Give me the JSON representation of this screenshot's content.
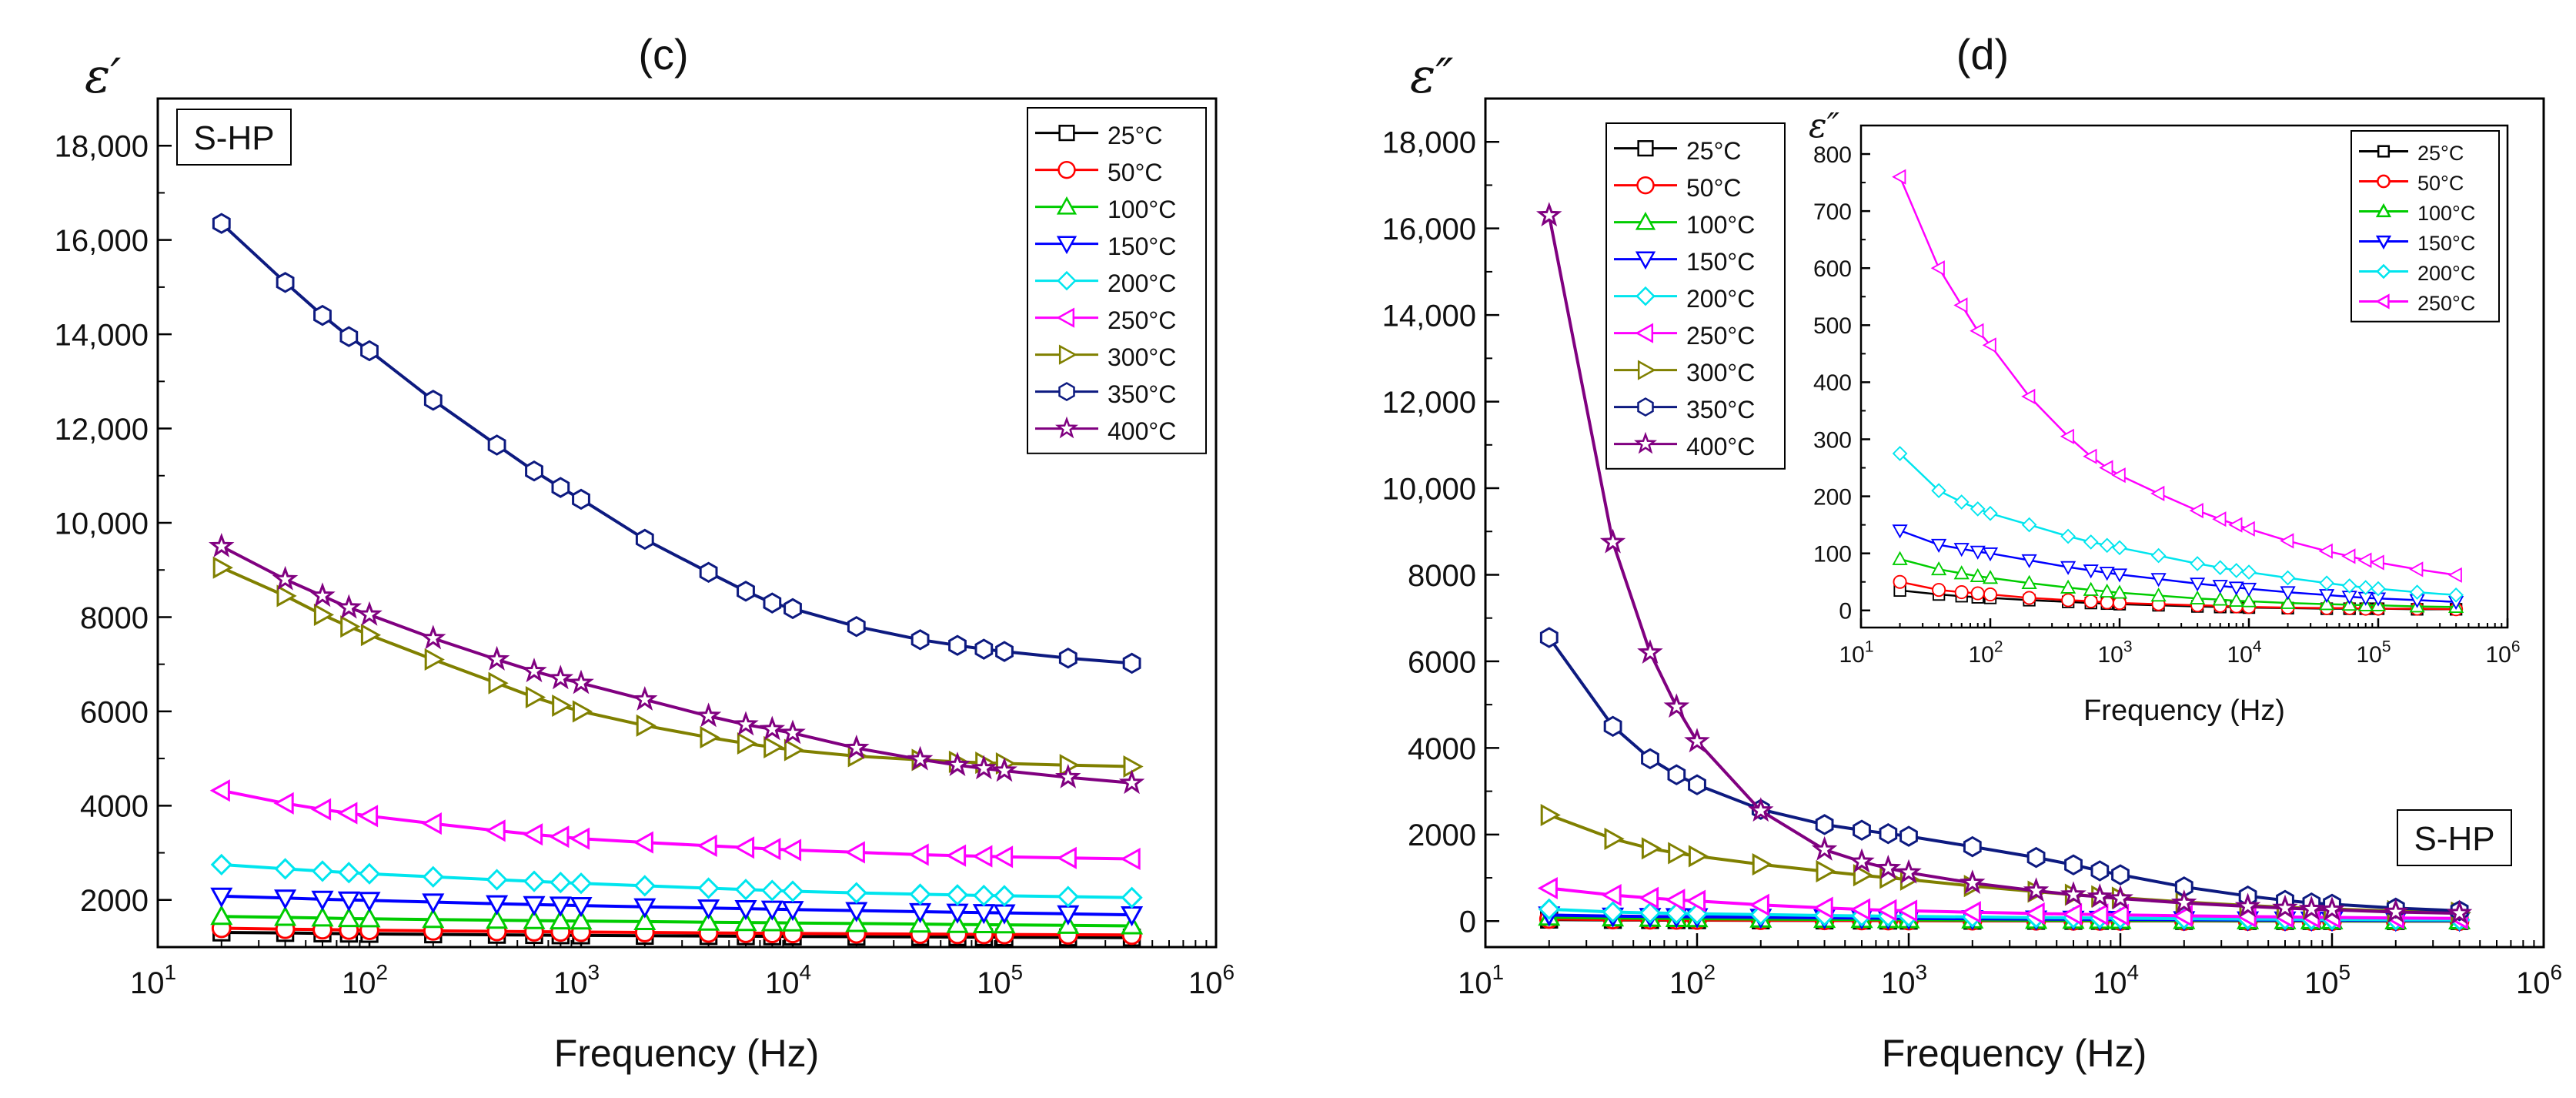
{
  "figure": {
    "panel_c_label": "(c)",
    "panel_d_label": "(d)"
  },
  "chart_data": [
    {
      "id": "c",
      "type": "line",
      "title": "(c)",
      "xlabel": "Frequency (Hz)",
      "ylabel": "ε′",
      "xscale": "log",
      "xlim": [
        10,
        1000000
      ],
      "ylim": [
        1000,
        19000
      ],
      "xticks": [
        {
          "value": 10,
          "mant": "10",
          "exp": "1"
        },
        {
          "value": 100,
          "mant": "10",
          "exp": "2"
        },
        {
          "value": 1000,
          "mant": "10",
          "exp": "3"
        },
        {
          "value": 10000,
          "mant": "10",
          "exp": "4"
        },
        {
          "value": 100000,
          "mant": "10",
          "exp": "5"
        },
        {
          "value": 1000000,
          "mant": "10",
          "exp": "6"
        }
      ],
      "yticks": [
        {
          "value": 2000,
          "label": "2000"
        },
        {
          "value": 4000,
          "label": "4000"
        },
        {
          "value": 6000,
          "label": "6000"
        },
        {
          "value": 8000,
          "label": "8000"
        },
        {
          "value": 10000,
          "label": "10,000"
        },
        {
          "value": 12000,
          "label": "12,000"
        },
        {
          "value": 14000,
          "label": "14,000"
        },
        {
          "value": 16000,
          "label": "16,000"
        },
        {
          "value": 18000,
          "label": "18,000"
        }
      ],
      "annotation": "S-HP",
      "annotation_position": "top-left",
      "legend_position": "top-right",
      "x": [
        20,
        40,
        60,
        80,
        100,
        200,
        400,
        600,
        800,
        1000,
        2000,
        4000,
        6000,
        8000,
        10000,
        20000,
        40000,
        60000,
        80000,
        100000,
        200000,
        400000
      ],
      "series": [
        {
          "name": "25°C",
          "color": "#000000",
          "marker": "square",
          "values": [
            1310,
            1300,
            1290,
            1285,
            1280,
            1270,
            1260,
            1255,
            1250,
            1248,
            1240,
            1235,
            1230,
            1228,
            1225,
            1220,
            1215,
            1212,
            1210,
            1208,
            1205,
            1200
          ]
        },
        {
          "name": "50°C",
          "color": "#ff0000",
          "marker": "circle",
          "values": [
            1400,
            1380,
            1370,
            1362,
            1358,
            1345,
            1333,
            1327,
            1322,
            1319,
            1310,
            1300,
            1295,
            1292,
            1290,
            1283,
            1276,
            1272,
            1270,
            1268,
            1262,
            1256
          ]
        },
        {
          "name": "100°C",
          "color": "#00cc00",
          "marker": "triangle-up",
          "values": [
            1650,
            1630,
            1615,
            1605,
            1600,
            1585,
            1570,
            1562,
            1556,
            1552,
            1540,
            1528,
            1521,
            1516,
            1512,
            1500,
            1488,
            1481,
            1476,
            1472,
            1460,
            1450
          ]
        },
        {
          "name": "150°C",
          "color": "#0000ff",
          "marker": "triangle-down",
          "values": [
            2080,
            2040,
            2015,
            2000,
            1990,
            1955,
            1920,
            1902,
            1890,
            1880,
            1855,
            1830,
            1815,
            1805,
            1797,
            1775,
            1752,
            1740,
            1731,
            1725,
            1705,
            1685
          ]
        },
        {
          "name": "200°C",
          "color": "#00e5ee",
          "marker": "diamond",
          "values": [
            2750,
            2660,
            2610,
            2580,
            2555,
            2490,
            2430,
            2395,
            2370,
            2352,
            2300,
            2250,
            2220,
            2200,
            2185,
            2150,
            2120,
            2105,
            2095,
            2088,
            2070,
            2050
          ]
        },
        {
          "name": "250°C",
          "color": "#ff00ff",
          "marker": "triangle-left",
          "values": [
            4320,
            4050,
            3920,
            3840,
            3780,
            3620,
            3470,
            3390,
            3340,
            3300,
            3220,
            3150,
            3110,
            3080,
            3060,
            3010,
            2960,
            2940,
            2925,
            2915,
            2890,
            2870
          ]
        },
        {
          "name": "300°C",
          "color": "#808000",
          "marker": "triangle-right",
          "values": [
            9050,
            8450,
            8050,
            7800,
            7620,
            7100,
            6600,
            6300,
            6120,
            6000,
            5700,
            5450,
            5320,
            5240,
            5180,
            5050,
            4970,
            4930,
            4910,
            4895,
            4860,
            4830
          ]
        },
        {
          "name": "350°C",
          "color": "#0d1a80",
          "marker": "hexagon",
          "values": [
            16350,
            15100,
            14400,
            13950,
            13650,
            12600,
            11650,
            11100,
            10750,
            10500,
            9650,
            8950,
            8550,
            8300,
            8180,
            7800,
            7520,
            7400,
            7320,
            7270,
            7130,
            7020
          ]
        },
        {
          "name": "400°C",
          "color": "#800080",
          "marker": "star",
          "values": [
            9500,
            8800,
            8450,
            8200,
            8050,
            7550,
            7100,
            6850,
            6700,
            6600,
            6250,
            5900,
            5720,
            5620,
            5540,
            5220,
            4980,
            4860,
            4790,
            4740,
            4600,
            4480
          ]
        }
      ]
    },
    {
      "id": "d",
      "type": "line",
      "title": "(d)",
      "xlabel": "Frequency (Hz)",
      "ylabel": "ε″",
      "xscale": "log",
      "xlim": [
        10,
        1000000
      ],
      "ylim": [
        -600,
        19000
      ],
      "xticks": [
        {
          "value": 10,
          "mant": "10",
          "exp": "1"
        },
        {
          "value": 100,
          "mant": "10",
          "exp": "2"
        },
        {
          "value": 1000,
          "mant": "10",
          "exp": "3"
        },
        {
          "value": 10000,
          "mant": "10",
          "exp": "4"
        },
        {
          "value": 100000,
          "mant": "10",
          "exp": "5"
        },
        {
          "value": 1000000,
          "mant": "10",
          "exp": "6"
        }
      ],
      "yticks": [
        {
          "value": 0,
          "label": "0"
        },
        {
          "value": 2000,
          "label": "2000"
        },
        {
          "value": 4000,
          "label": "4000"
        },
        {
          "value": 6000,
          "label": "6000"
        },
        {
          "value": 8000,
          "label": "8000"
        },
        {
          "value": 10000,
          "label": "10,000"
        },
        {
          "value": 12000,
          "label": "12,000"
        },
        {
          "value": 14000,
          "label": "14,000"
        },
        {
          "value": 16000,
          "label": "16,000"
        },
        {
          "value": 18000,
          "label": "18,000"
        }
      ],
      "annotation": "S-HP",
      "annotation_position": "bottom-right",
      "legend_position": "top-left",
      "x": [
        20,
        40,
        60,
        80,
        100,
        200,
        400,
        600,
        800,
        1000,
        2000,
        4000,
        6000,
        8000,
        10000,
        20000,
        40000,
        60000,
        80000,
        100000,
        200000,
        400000
      ],
      "series": [
        {
          "name": "25°C",
          "color": "#000000",
          "marker": "square",
          "values": [
            35,
            28,
            25,
            23,
            22,
            18,
            15,
            13,
            12,
            11,
            9,
            7,
            6,
            6,
            5,
            4,
            3,
            3,
            3,
            3,
            2,
            2
          ]
        },
        {
          "name": "50°C",
          "color": "#ff0000",
          "marker": "circle",
          "values": [
            50,
            36,
            32,
            30,
            28,
            22,
            18,
            16,
            14,
            13,
            11,
            9,
            8,
            7,
            6,
            5,
            4,
            4,
            3,
            3,
            3,
            2
          ]
        },
        {
          "name": "100°C",
          "color": "#00cc00",
          "marker": "triangle-up",
          "values": [
            90,
            72,
            65,
            60,
            57,
            48,
            40,
            36,
            33,
            31,
            26,
            21,
            19,
            17,
            16,
            13,
            11,
            10,
            9,
            9,
            7,
            6
          ]
        },
        {
          "name": "150°C",
          "color": "#0000ff",
          "marker": "triangle-down",
          "values": [
            140,
            115,
            108,
            103,
            100,
            88,
            76,
            70,
            66,
            63,
            55,
            47,
            43,
            40,
            38,
            32,
            27,
            24,
            22,
            21,
            18,
            15
          ]
        },
        {
          "name": "200°C",
          "color": "#00e5ee",
          "marker": "diamond",
          "values": [
            275,
            210,
            190,
            178,
            170,
            150,
            130,
            120,
            114,
            110,
            96,
            82,
            75,
            70,
            67,
            57,
            48,
            43,
            40,
            38,
            32,
            27
          ]
        },
        {
          "name": "250°C",
          "color": "#ff00ff",
          "marker": "triangle-left",
          "values": [
            760,
            600,
            535,
            490,
            465,
            375,
            305,
            270,
            250,
            237,
            205,
            175,
            160,
            150,
            143,
            122,
            104,
            95,
            88,
            84,
            72,
            62
          ]
        },
        {
          "name": "300°C",
          "color": "#808000",
          "marker": "triangle-right",
          "values": [
            2450,
            1900,
            1680,
            1570,
            1500,
            1310,
            1150,
            1060,
            1000,
            960,
            810,
            680,
            610,
            570,
            540,
            440,
            360,
            320,
            295,
            280,
            230,
            195
          ]
        },
        {
          "name": "350°C",
          "color": "#0d1a80",
          "marker": "hexagon",
          "values": [
            6550,
            4500,
            3750,
            3380,
            3150,
            2580,
            2230,
            2100,
            2020,
            1960,
            1720,
            1470,
            1300,
            1160,
            1070,
            790,
            580,
            480,
            420,
            390,
            300,
            240
          ]
        },
        {
          "name": "400°C",
          "color": "#800080",
          "marker": "star",
          "values": [
            16300,
            8750,
            6200,
            4950,
            4150,
            2550,
            1650,
            1370,
            1220,
            1120,
            880,
            700,
            610,
            560,
            520,
            420,
            340,
            300,
            275,
            260,
            210,
            180
          ]
        }
      ]
    },
    {
      "id": "d-inset",
      "type": "line",
      "title": "",
      "xlabel": "Frequency (Hz)",
      "ylabel": "ε″",
      "xscale": "log",
      "xlim": [
        10,
        1000000
      ],
      "ylim": [
        -30,
        850
      ],
      "xticks": [
        {
          "value": 10,
          "mant": "10",
          "exp": "1"
        },
        {
          "value": 100,
          "mant": "10",
          "exp": "2"
        },
        {
          "value": 1000,
          "mant": "10",
          "exp": "3"
        },
        {
          "value": 10000,
          "mant": "10",
          "exp": "4"
        },
        {
          "value": 100000,
          "mant": "10",
          "exp": "5"
        },
        {
          "value": 1000000,
          "mant": "10",
          "exp": "6"
        }
      ],
      "yticks": [
        {
          "value": 0,
          "label": "0"
        },
        {
          "value": 100,
          "label": "100"
        },
        {
          "value": 200,
          "label": "200"
        },
        {
          "value": 300,
          "label": "300"
        },
        {
          "value": 400,
          "label": "400"
        },
        {
          "value": 500,
          "label": "500"
        },
        {
          "value": 600,
          "label": "600"
        },
        {
          "value": 700,
          "label": "700"
        },
        {
          "value": 800,
          "label": "800"
        }
      ],
      "legend_position": "top-right",
      "series_source": "d",
      "series_count": 6
    }
  ]
}
